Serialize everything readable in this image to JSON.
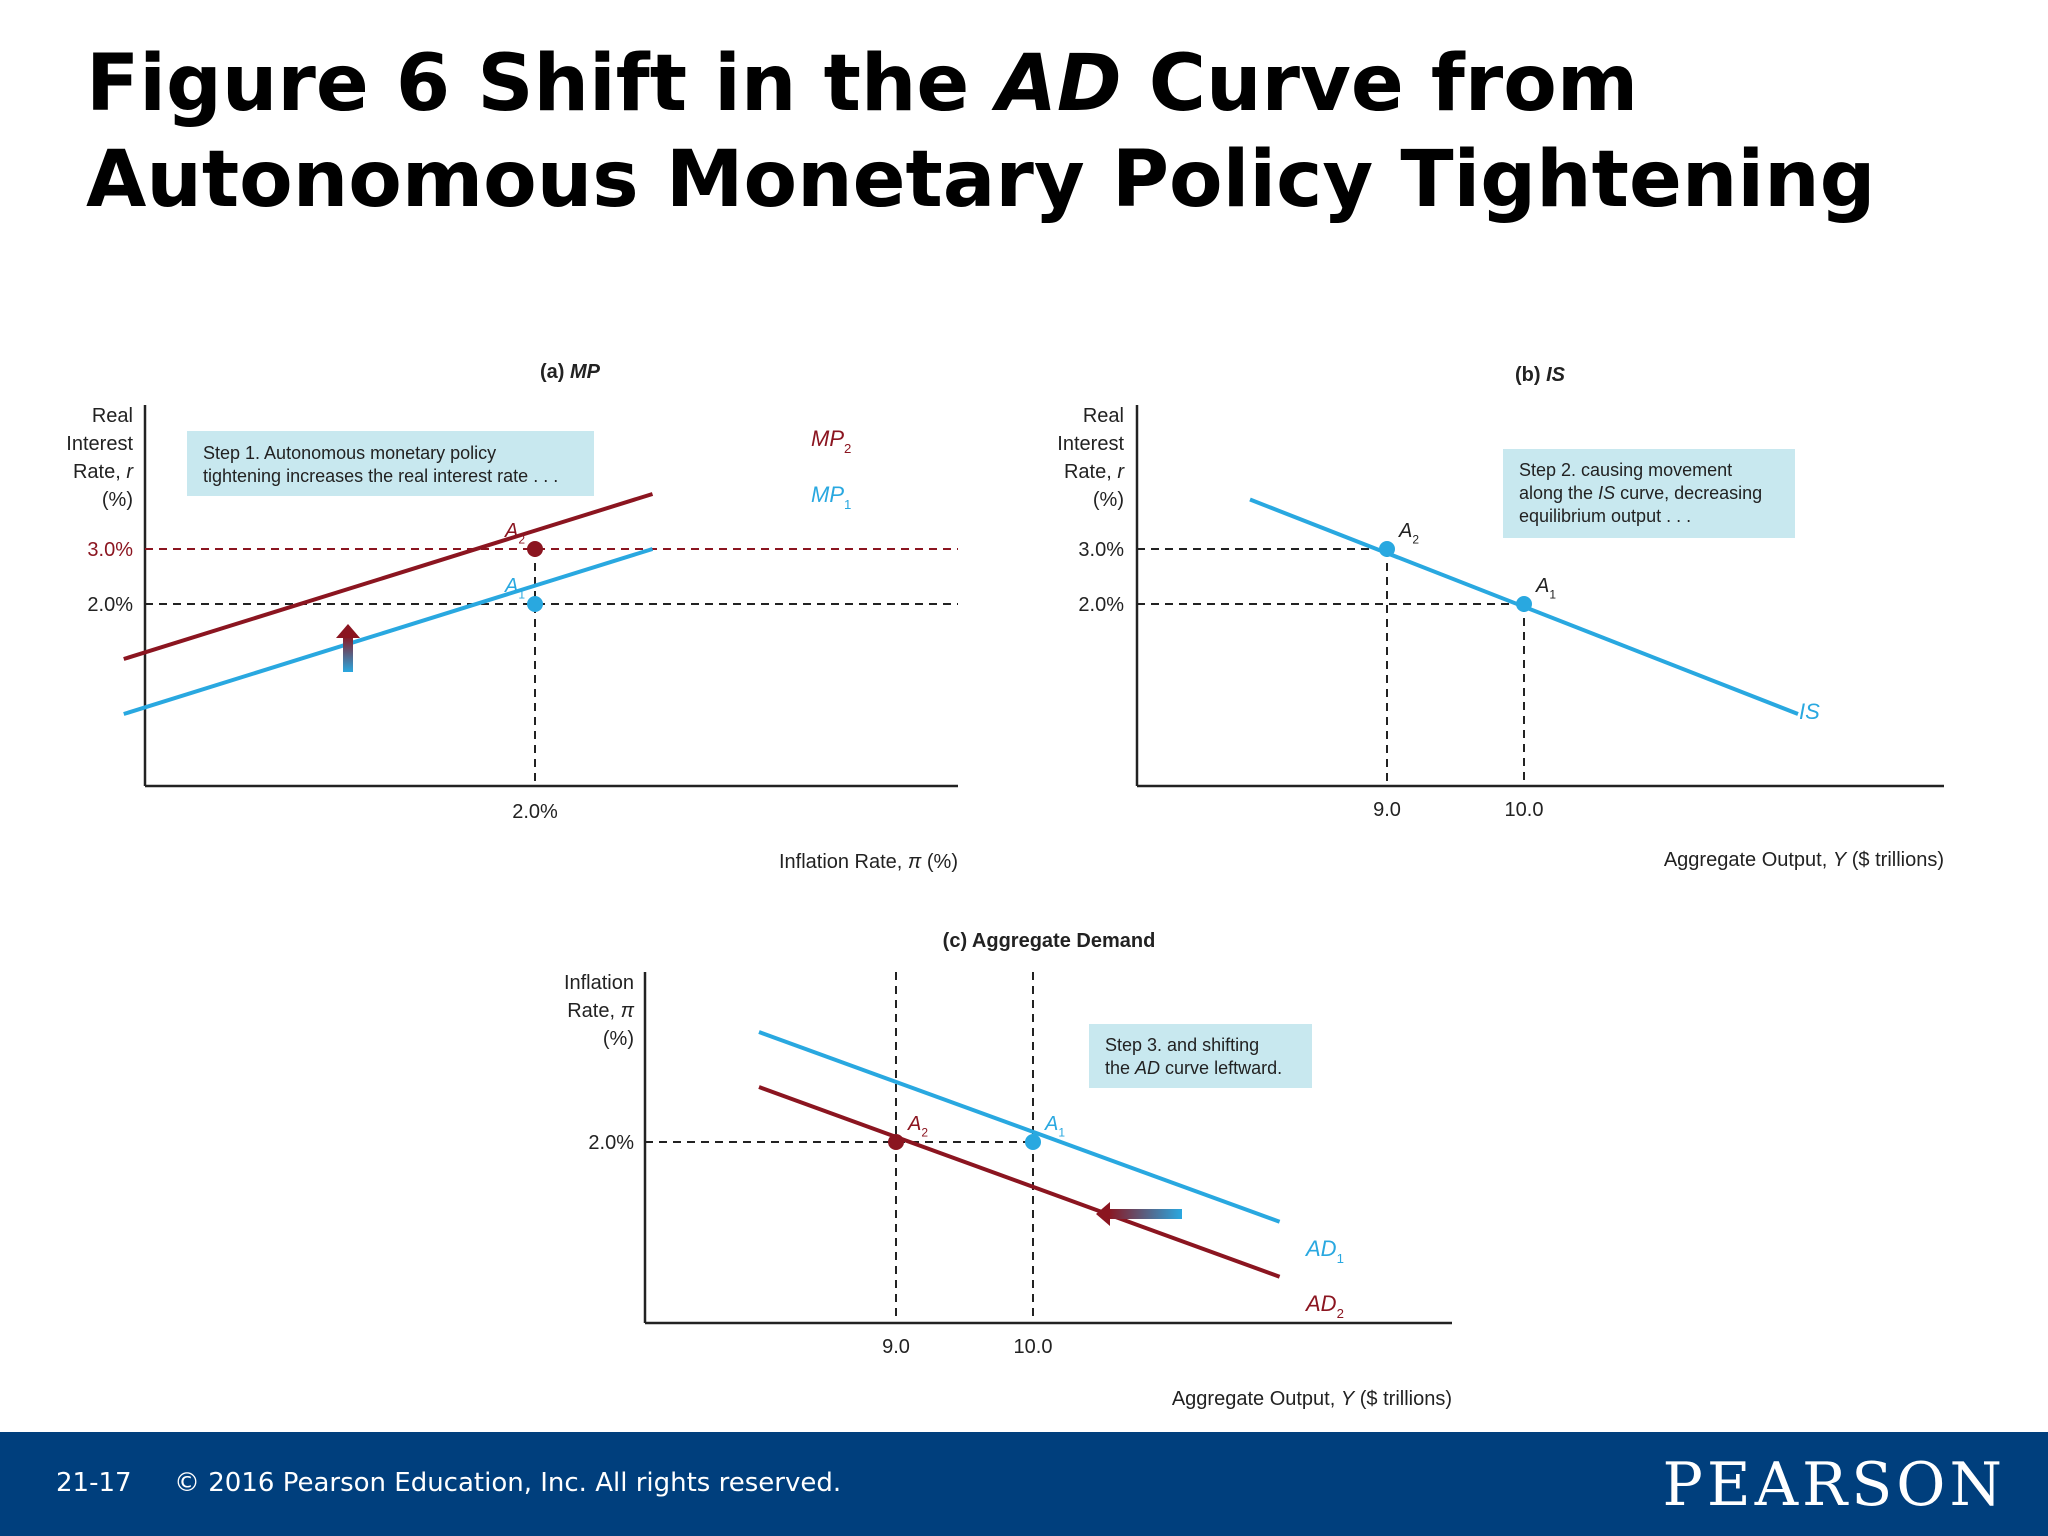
{
  "slide": {
    "title_parts": [
      "Figure 6 Shift in the ",
      "AD",
      " Curve from Autonomous Monetary Policy Tightening"
    ],
    "footer": {
      "slide_number": "21-17",
      "copyright": "© 2016 Pearson Education, Inc. All rights reserved.",
      "brand": "PEARSON"
    }
  },
  "colors": {
    "blue": "#29a8e0",
    "red": "#8b1520",
    "annotation_bg": "#c8e8ef",
    "footer_bg": "#003f7d"
  },
  "chart_data": [
    {
      "id": "mp",
      "type": "line",
      "title": [
        "(a) ",
        "MP"
      ],
      "ylabel": [
        "Real",
        "Interest",
        [
          "Rate, ",
          "r"
        ],
        "(%)"
      ],
      "xlabel": [
        "Inflation Rate, ",
        "π",
        " (%)"
      ],
      "xticks": [
        "2.0%"
      ],
      "yticks": [
        "3.0%",
        "2.0%"
      ],
      "series": [
        {
          "name": "MP",
          "sub": "2",
          "color": "red",
          "x": [
            -1.5,
            3.0
          ],
          "y": [
            1.0,
            4.0
          ]
        },
        {
          "name": "MP",
          "sub": "1",
          "color": "blue",
          "x": [
            -1.5,
            3.0
          ],
          "y": [
            0.0,
            3.0
          ]
        }
      ],
      "points": [
        {
          "label": "A",
          "sub": "2",
          "x": 2.0,
          "y": 3.0,
          "color": "red"
        },
        {
          "label": "A",
          "sub": "1",
          "x": 2.0,
          "y": 2.0,
          "color": "blue"
        }
      ],
      "annotation": [
        "Step 1. Autonomous monetary policy",
        "tightening increases the real interest rate . . ."
      ],
      "shift_arrow": "up"
    },
    {
      "id": "is",
      "type": "line",
      "title": [
        "(b) ",
        "IS"
      ],
      "ylabel": [
        "Real",
        "Interest",
        [
          "Rate, ",
          "r"
        ],
        "(%)"
      ],
      "xlabel": [
        "Aggregate Output, ",
        "Y",
        " ($ trillions)"
      ],
      "xticks": [
        "9.0",
        "10.0"
      ],
      "yticks": [
        "3.0%",
        "2.0%"
      ],
      "series": [
        {
          "name": "IS",
          "color": "blue",
          "x": [
            8.0,
            12.0
          ],
          "y": [
            3.9,
            0.0
          ]
        }
      ],
      "points": [
        {
          "label": "A",
          "sub": "2",
          "x": 9.0,
          "y": 3.0,
          "color": "blue"
        },
        {
          "label": "A",
          "sub": "1",
          "x": 10.0,
          "y": 2.0,
          "color": "blue"
        }
      ],
      "annotation": [
        [
          "Step 2. causing movement"
        ],
        [
          "along the ",
          "IS",
          " curve, decreasing"
        ],
        [
          "equilibrium output . . ."
        ]
      ]
    },
    {
      "id": "ad",
      "type": "line",
      "title": [
        "(c) Aggregate Demand"
      ],
      "ylabel": [
        "Inflation",
        [
          "Rate, ",
          "π"
        ],
        "(%)"
      ],
      "xlabel": [
        "Aggregate Output, ",
        "Y",
        " ($ trillions)"
      ],
      "xticks": [
        "9.0",
        "10.0"
      ],
      "yticks": [
        "2.0%"
      ],
      "series": [
        {
          "name": "AD",
          "sub": "1",
          "color": "blue",
          "x": [
            8.0,
            11.8
          ],
          "y": [
            4.0,
            0.55
          ]
        },
        {
          "name": "AD",
          "sub": "2",
          "color": "red",
          "x": [
            8.0,
            11.8
          ],
          "y": [
            3.0,
            -0.45
          ]
        }
      ],
      "points": [
        {
          "label": "A",
          "sub": "2",
          "x": 9.0,
          "y": 2.0,
          "color": "red"
        },
        {
          "label": "A",
          "sub": "1",
          "x": 10.0,
          "y": 2.0,
          "color": "blue"
        }
      ],
      "annotation": [
        [
          "Step 3. and shifting"
        ],
        [
          "the ",
          "AD",
          " curve leftward."
        ]
      ],
      "shift_arrow": "left"
    }
  ]
}
